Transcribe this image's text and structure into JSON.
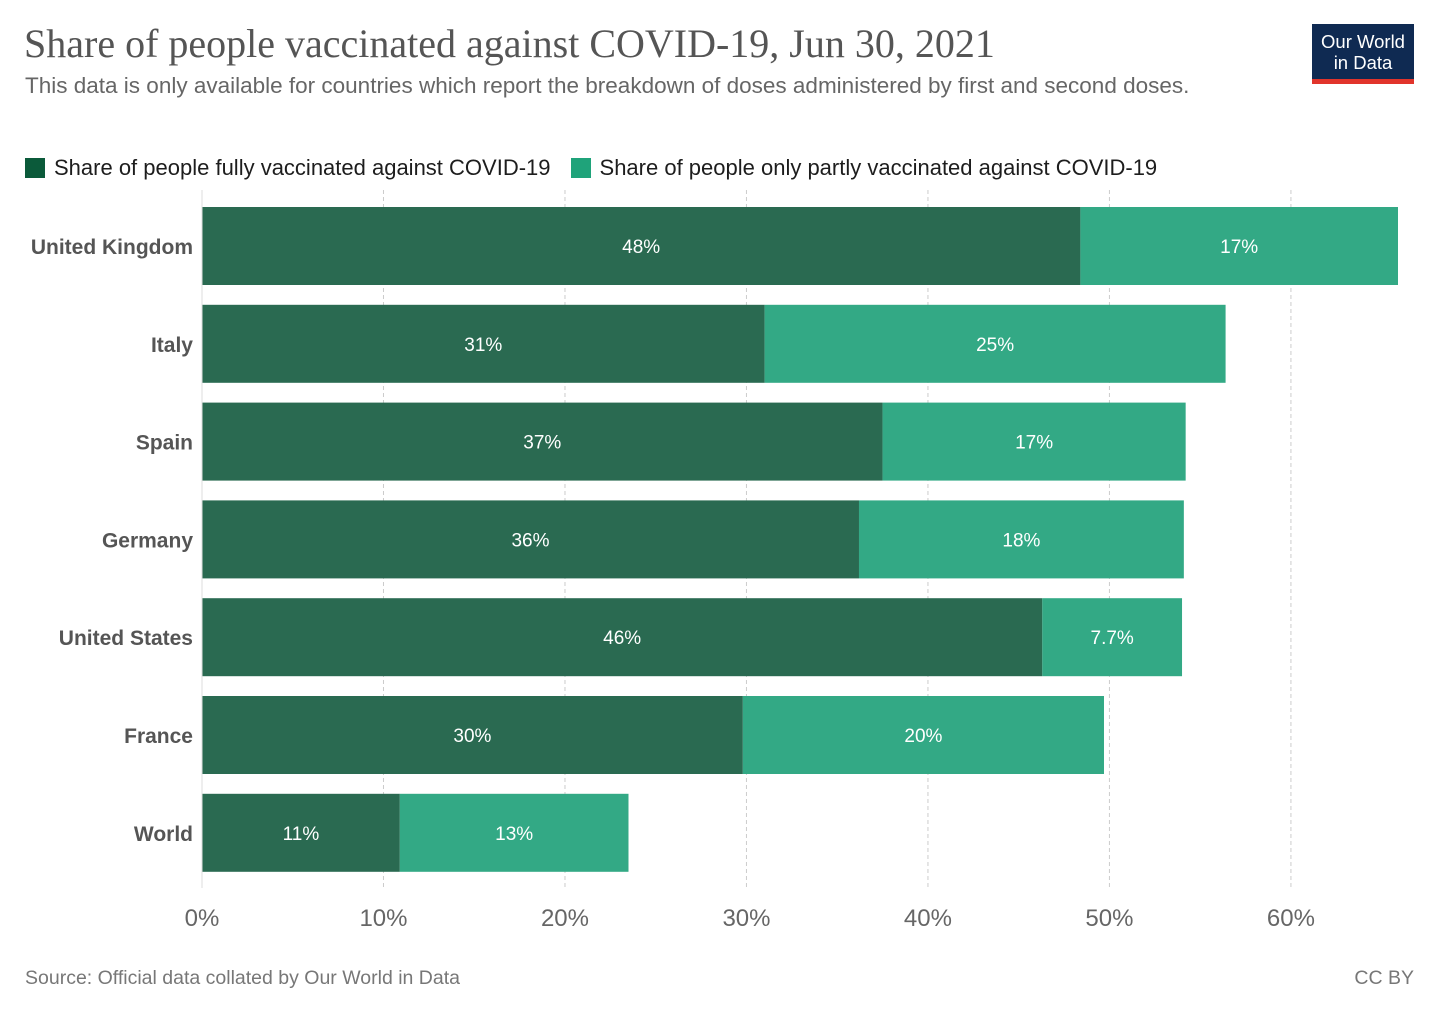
{
  "header": {
    "title": "Share of people vaccinated against COVID-19, Jun 30, 2021",
    "subtitle": "This data is only available for countries which report the breakdown of doses administered by first and second doses."
  },
  "logo": {
    "line1": "Our World",
    "line2": "in Data"
  },
  "footer": {
    "source": "Source: Official data collated by Our World in Data",
    "license": "CC BY"
  },
  "colors": {
    "fully": "#2a6a51",
    "partly": "#33a985",
    "legend_fully": "#0b5a3a",
    "legend_partly": "#1fa37a"
  },
  "chart_data": {
    "type": "bar",
    "orientation": "horizontal",
    "stacked": true,
    "categories": [
      "United Kingdom",
      "Italy",
      "Spain",
      "Germany",
      "United States",
      "France",
      "World"
    ],
    "series": [
      {
        "name": "Share of people fully vaccinated against COVID-19",
        "values": [
          48.4,
          31.0,
          37.5,
          36.2,
          46.3,
          29.8,
          10.9
        ],
        "labels": [
          "48%",
          "31%",
          "37%",
          "36%",
          "46%",
          "30%",
          "11%"
        ]
      },
      {
        "name": "Share of people only partly vaccinated against COVID-19",
        "values": [
          17.5,
          25.4,
          16.7,
          17.9,
          7.7,
          19.9,
          12.6
        ],
        "labels": [
          "17%",
          "25%",
          "17%",
          "18%",
          "7.7%",
          "20%",
          "13%"
        ]
      }
    ],
    "xlim": [
      0,
      65.9
    ],
    "xticks": [
      0,
      10,
      20,
      30,
      40,
      50,
      60
    ],
    "xtick_labels": [
      "0%",
      "10%",
      "20%",
      "30%",
      "40%",
      "50%",
      "60%"
    ],
    "grid": "vertical dashed",
    "legend": "top-left"
  }
}
